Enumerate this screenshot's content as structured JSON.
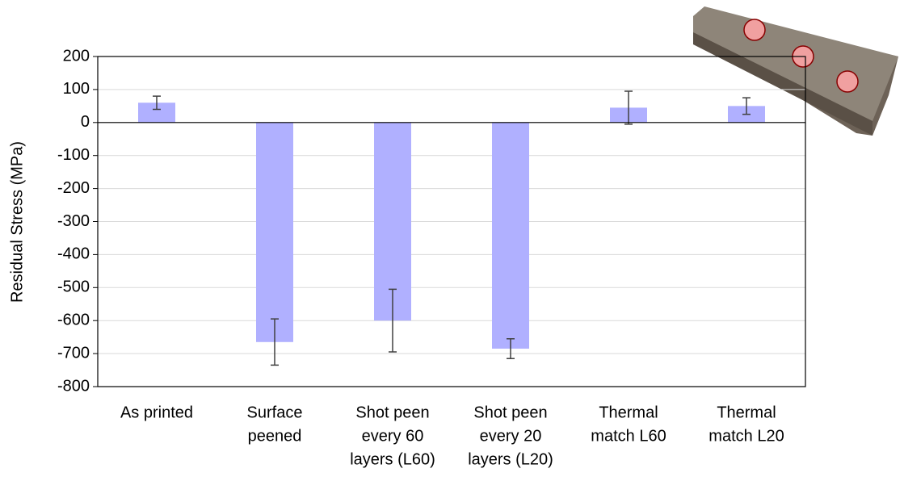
{
  "chart_data": {
    "type": "bar",
    "y_label": "Residual Stress (MPa)",
    "categories": [
      [
        "As printed"
      ],
      [
        "Surface",
        "peened"
      ],
      [
        "Shot peen",
        "every 60",
        "layers (L60)"
      ],
      [
        "Shot peen",
        "every 20",
        "layers (L20)"
      ],
      [
        "Thermal",
        "match L60"
      ],
      [
        "Thermal",
        "match L20"
      ]
    ],
    "values": [
      60,
      -665,
      -600,
      -685,
      45,
      50
    ],
    "errors": [
      20,
      70,
      95,
      30,
      50,
      25
    ],
    "color": "#b0b0ff",
    "ylim": [
      -800,
      200
    ],
    "yticks": [
      -800,
      -700,
      -600,
      -500,
      -400,
      -300,
      -200,
      -100,
      0,
      100,
      200
    ],
    "grid": true
  }
}
